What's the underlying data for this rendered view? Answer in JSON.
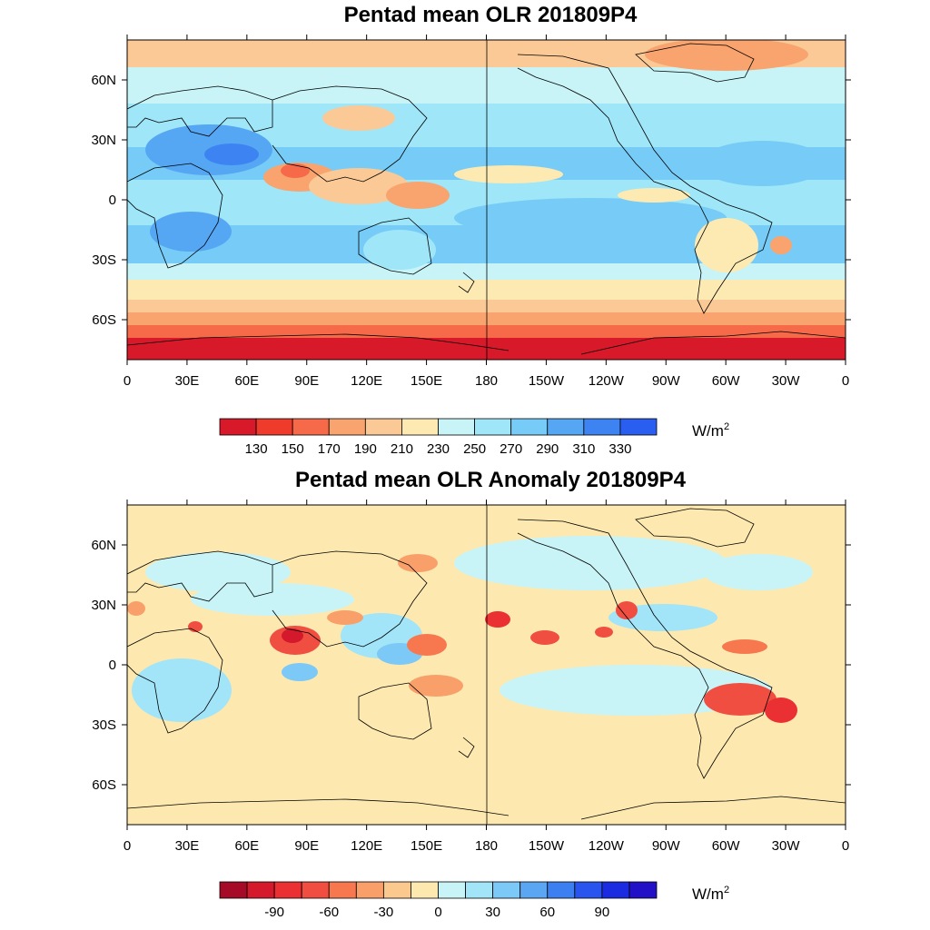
{
  "panels": [
    {
      "title": "Pentad mean OLR 201809P4",
      "lon_ticks": [
        "0",
        "30E",
        "60E",
        "90E",
        "120E",
        "150E",
        "180",
        "150W",
        "120W",
        "90W",
        "60W",
        "30W",
        "0"
      ],
      "lat_ticks": [
        "60N",
        "30N",
        "0",
        "30S",
        "60S"
      ],
      "colorbar": {
        "colors": [
          "#d7192a",
          "#ee3b2c",
          "#f66a4a",
          "#f9a36e",
          "#fbc996",
          "#fdeab3",
          "#c8f4f7",
          "#9fe6f8",
          "#76ccf6",
          "#55a7f4",
          "#3d84f2",
          "#2a5ef0"
        ],
        "labels": [
          "130",
          "150",
          "170",
          "190",
          "210",
          "230",
          "250",
          "270",
          "290",
          "310",
          "330"
        ],
        "unit": "W/m",
        "unit_sup": "2"
      }
    },
    {
      "title": "Pentad mean OLR Anomaly 201809P4",
      "lon_ticks": [
        "0",
        "30E",
        "60E",
        "90E",
        "120E",
        "150E",
        "180",
        "150W",
        "120W",
        "90W",
        "60W",
        "30W",
        "0"
      ],
      "lat_ticks": [
        "60N",
        "30N",
        "0",
        "30S",
        "60S"
      ],
      "colorbar": {
        "colors": [
          "#a50b26",
          "#d4192c",
          "#ea3033",
          "#f04e40",
          "#f7784f",
          "#f9a06a",
          "#fbc88d",
          "#fde9b0",
          "#c8f4f7",
          "#a2e4f8",
          "#7cc8f6",
          "#5aa6f3",
          "#3c7ff0",
          "#2955ee",
          "#1b2ce0",
          "#2210c6"
        ],
        "labels": [
          "-90",
          "-60",
          "-30",
          "0",
          "30",
          "60",
          "90"
        ],
        "unit": "W/m",
        "unit_sup": "2"
      }
    }
  ],
  "colors": {
    "ocean_mean": "#fdeab3",
    "ocean_anom": "#fdeab3",
    "coast": "#000000"
  }
}
